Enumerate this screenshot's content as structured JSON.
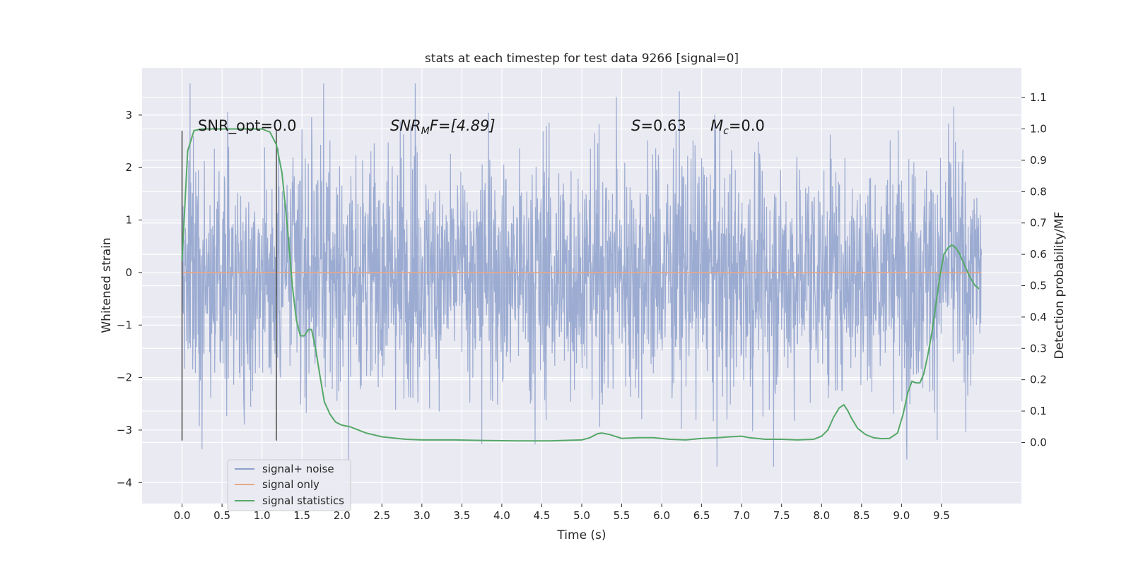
{
  "chart_data": {
    "type": "line",
    "title": "stats at each timestep for test data 9266 [signal=0]",
    "xlabel": "Time (s)",
    "ylabel": "Whitened strain",
    "y2label": "Detection probability/MF",
    "xlim": [
      -0.5,
      10.5
    ],
    "ylim": [
      -4.4,
      3.9
    ],
    "y2lim": [
      -0.195,
      1.195
    ],
    "x_ticks": [
      0.0,
      0.5,
      1.0,
      1.5,
      2.0,
      2.5,
      3.0,
      3.5,
      4.0,
      4.5,
      5.0,
      5.5,
      6.0,
      6.5,
      7.0,
      7.5,
      8.0,
      8.5,
      9.0,
      9.5
    ],
    "x_tick_labels": [
      "0.0",
      "0.5",
      "1.0",
      "1.5",
      "2.0",
      "2.5",
      "3.0",
      "3.5",
      "4.0",
      "4.5",
      "5.0",
      "5.5",
      "6.0",
      "6.5",
      "7.0",
      "7.5",
      "8.0",
      "8.5",
      "9.0",
      "9.5"
    ],
    "y_ticks": [
      3,
      2,
      1,
      0,
      -1,
      -2,
      -3,
      -4
    ],
    "y_tick_labels": [
      "3",
      "2",
      "1",
      "0",
      "−1",
      "−2",
      "−3",
      "−4"
    ],
    "y2_ticks": [
      1.1,
      1.0,
      0.9,
      0.8,
      0.7,
      0.6,
      0.5,
      0.4,
      0.3,
      0.2,
      0.1,
      0.0
    ],
    "y2_tick_labels": [
      "1.1",
      "1.0",
      "0.9",
      "0.8",
      "0.7",
      "0.6",
      "0.5",
      "0.4",
      "0.3",
      "0.2",
      "0.1",
      "0.0"
    ],
    "grid": true,
    "legend_position": "lower-left",
    "noise_series": {
      "name": "signal+ noise",
      "color": "#8da0cb",
      "x_range": [
        0.0,
        10.0
      ],
      "typical_band": [
        -1.5,
        1.5
      ],
      "range": [
        -3.7,
        3.6
      ]
    },
    "signal_series": {
      "name": "signal only",
      "color": "#e5a98a",
      "x": [
        0.0,
        10.0
      ],
      "y": [
        0.0,
        0.0
      ]
    },
    "stat_series": {
      "name": "signal statistics",
      "color": "#55a868",
      "x": [
        0.0,
        0.07,
        0.15,
        0.25,
        0.4,
        0.6,
        0.8,
        1.0,
        1.1,
        1.18,
        1.25,
        1.32,
        1.38,
        1.43,
        1.48,
        1.53,
        1.58,
        1.62,
        1.67,
        1.72,
        1.78,
        1.85,
        1.92,
        2.0,
        2.1,
        2.3,
        2.5,
        2.8,
        3.0,
        3.4,
        3.8,
        4.2,
        4.6,
        5.0,
        5.1,
        5.2,
        5.25,
        5.35,
        5.5,
        5.7,
        5.9,
        6.1,
        6.3,
        6.5,
        6.7,
        6.85,
        7.0,
        7.1,
        7.3,
        7.5,
        7.7,
        7.9,
        8.0,
        8.08,
        8.15,
        8.22,
        8.28,
        8.33,
        8.38,
        8.45,
        8.55,
        8.65,
        8.75,
        8.85,
        8.95,
        9.02,
        9.08,
        9.13,
        9.18,
        9.23,
        9.28,
        9.33,
        9.38,
        9.43,
        9.48,
        9.53,
        9.58,
        9.63,
        9.68,
        9.73,
        9.78,
        9.85,
        9.92,
        9.97
      ],
      "y": [
        0.58,
        0.93,
        0.995,
        1.0,
        1.0,
        1.0,
        1.0,
        1.0,
        0.99,
        0.95,
        0.86,
        0.68,
        0.5,
        0.39,
        0.34,
        0.34,
        0.36,
        0.36,
        0.3,
        0.22,
        0.13,
        0.09,
        0.065,
        0.055,
        0.05,
        0.03,
        0.018,
        0.01,
        0.008,
        0.008,
        0.006,
        0.005,
        0.005,
        0.008,
        0.015,
        0.028,
        0.03,
        0.025,
        0.013,
        0.015,
        0.015,
        0.01,
        0.008,
        0.013,
        0.015,
        0.018,
        0.02,
        0.015,
        0.01,
        0.01,
        0.008,
        0.01,
        0.02,
        0.04,
        0.08,
        0.11,
        0.12,
        0.1,
        0.075,
        0.045,
        0.025,
        0.015,
        0.012,
        0.013,
        0.03,
        0.09,
        0.16,
        0.195,
        0.19,
        0.19,
        0.22,
        0.28,
        0.35,
        0.44,
        0.53,
        0.6,
        0.62,
        0.63,
        0.62,
        0.6,
        0.57,
        0.53,
        0.5,
        0.49
      ]
    },
    "vertical_lines": [
      {
        "x": 0.0,
        "y_range": [
          -3.2,
          2.7
        ],
        "color": "#555555"
      },
      {
        "x": 1.18,
        "y_range": [
          -3.2,
          2.7
        ],
        "color": "#555555"
      }
    ],
    "annotations": {
      "snr_opt": "SNR_opt=0.0",
      "snr_mf_prefix": "SNR",
      "snr_mf_sub": "M",
      "snr_mf_suffix": "F=[4.89]",
      "s_var": "S",
      "s_value": "=0.63",
      "mc_var": "M",
      "mc_sub": "c",
      "mc_value": "=0.0"
    }
  },
  "legend": {
    "entries": [
      {
        "label": "signal+ noise",
        "color": "#8da0cb"
      },
      {
        "label": "signal only",
        "color": "#e5a98a"
      },
      {
        "label": "signal statistics",
        "color": "#55a868"
      }
    ]
  }
}
